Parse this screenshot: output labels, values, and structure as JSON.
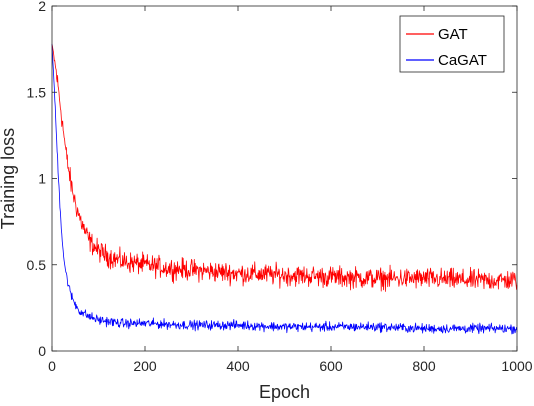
{
  "chart_data": {
    "type": "line",
    "title": "",
    "xlabel": "Epoch",
    "ylabel": "Training loss",
    "xlim": [
      0,
      1000
    ],
    "ylim": [
      0,
      2
    ],
    "xticks": [
      0,
      200,
      400,
      600,
      800,
      1000
    ],
    "yticks": [
      0,
      0.5,
      1,
      1.5,
      2
    ],
    "xtick_labels": [
      "0",
      "200",
      "400",
      "600",
      "800",
      "1000"
    ],
    "ytick_labels": [
      "0",
      "0.5",
      "1",
      "1.5",
      "2"
    ],
    "grid": false,
    "legend_position": "top-right",
    "series": [
      {
        "name": "GAT",
        "color": "#ff0000",
        "x": [
          0,
          10,
          20,
          30,
          40,
          50,
          60,
          70,
          80,
          100,
          120,
          150,
          200,
          250,
          300,
          400,
          500,
          600,
          700,
          800,
          900,
          1000
        ],
        "y": [
          1.78,
          1.6,
          1.38,
          1.15,
          0.98,
          0.86,
          0.77,
          0.7,
          0.64,
          0.58,
          0.55,
          0.52,
          0.5,
          0.48,
          0.47,
          0.45,
          0.44,
          0.43,
          0.42,
          0.42,
          0.41,
          0.41
        ],
        "noise_amplitude": 0.09
      },
      {
        "name": "CaGAT",
        "color": "#0000ff",
        "x": [
          0,
          5,
          10,
          15,
          20,
          25,
          30,
          40,
          50,
          60,
          80,
          100,
          150,
          200,
          300,
          400,
          500,
          600,
          700,
          800,
          900,
          1000
        ],
        "y": [
          1.78,
          1.52,
          1.22,
          0.95,
          0.72,
          0.55,
          0.45,
          0.33,
          0.27,
          0.23,
          0.2,
          0.18,
          0.16,
          0.16,
          0.15,
          0.15,
          0.14,
          0.14,
          0.14,
          0.13,
          0.13,
          0.13
        ],
        "noise_amplitude": 0.04
      }
    ]
  }
}
